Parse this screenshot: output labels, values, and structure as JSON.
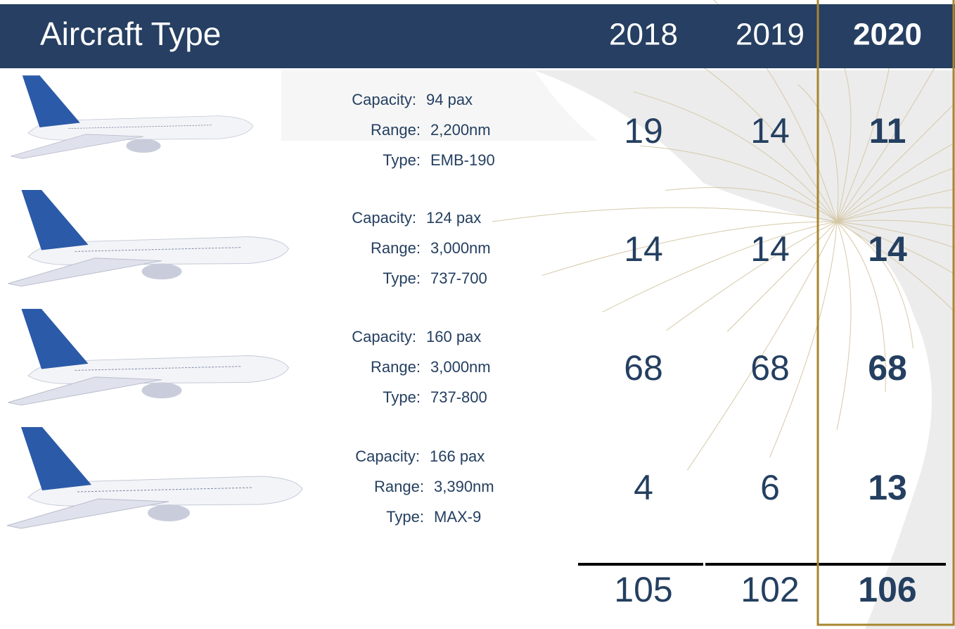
{
  "header": {
    "title": "Aircraft Type",
    "years": [
      "2018",
      "2019",
      "2020"
    ]
  },
  "rows": [
    {
      "specs": [
        {
          "label": "Capacity:",
          "value": "94 pax"
        },
        {
          "label": "Range:",
          "value": "2,200nm"
        },
        {
          "label": "Type:",
          "value": "EMB-190"
        }
      ],
      "counts": [
        19,
        14,
        11
      ]
    },
    {
      "specs": [
        {
          "label": "Capacity:",
          "value": "124 pax"
        },
        {
          "label": "Range:",
          "value": "3,000nm"
        },
        {
          "label": "Type:",
          "value": "737-700"
        }
      ],
      "counts": [
        14,
        14,
        14
      ]
    },
    {
      "specs": [
        {
          "label": "Capacity:",
          "value": "160 pax"
        },
        {
          "label": "Range:",
          "value": "3,000nm"
        },
        {
          "label": "Type:",
          "value": "737-800"
        }
      ],
      "counts": [
        68,
        68,
        68
      ]
    },
    {
      "specs": [
        {
          "label": "Capacity:",
          "value": "166 pax"
        },
        {
          "label": "Range:",
          "value": "3,390nm"
        },
        {
          "label": "Type:",
          "value": "MAX-9"
        }
      ],
      "counts": [
        4,
        6,
        13
      ]
    }
  ],
  "totals": [
    105,
    102,
    106
  ]
}
